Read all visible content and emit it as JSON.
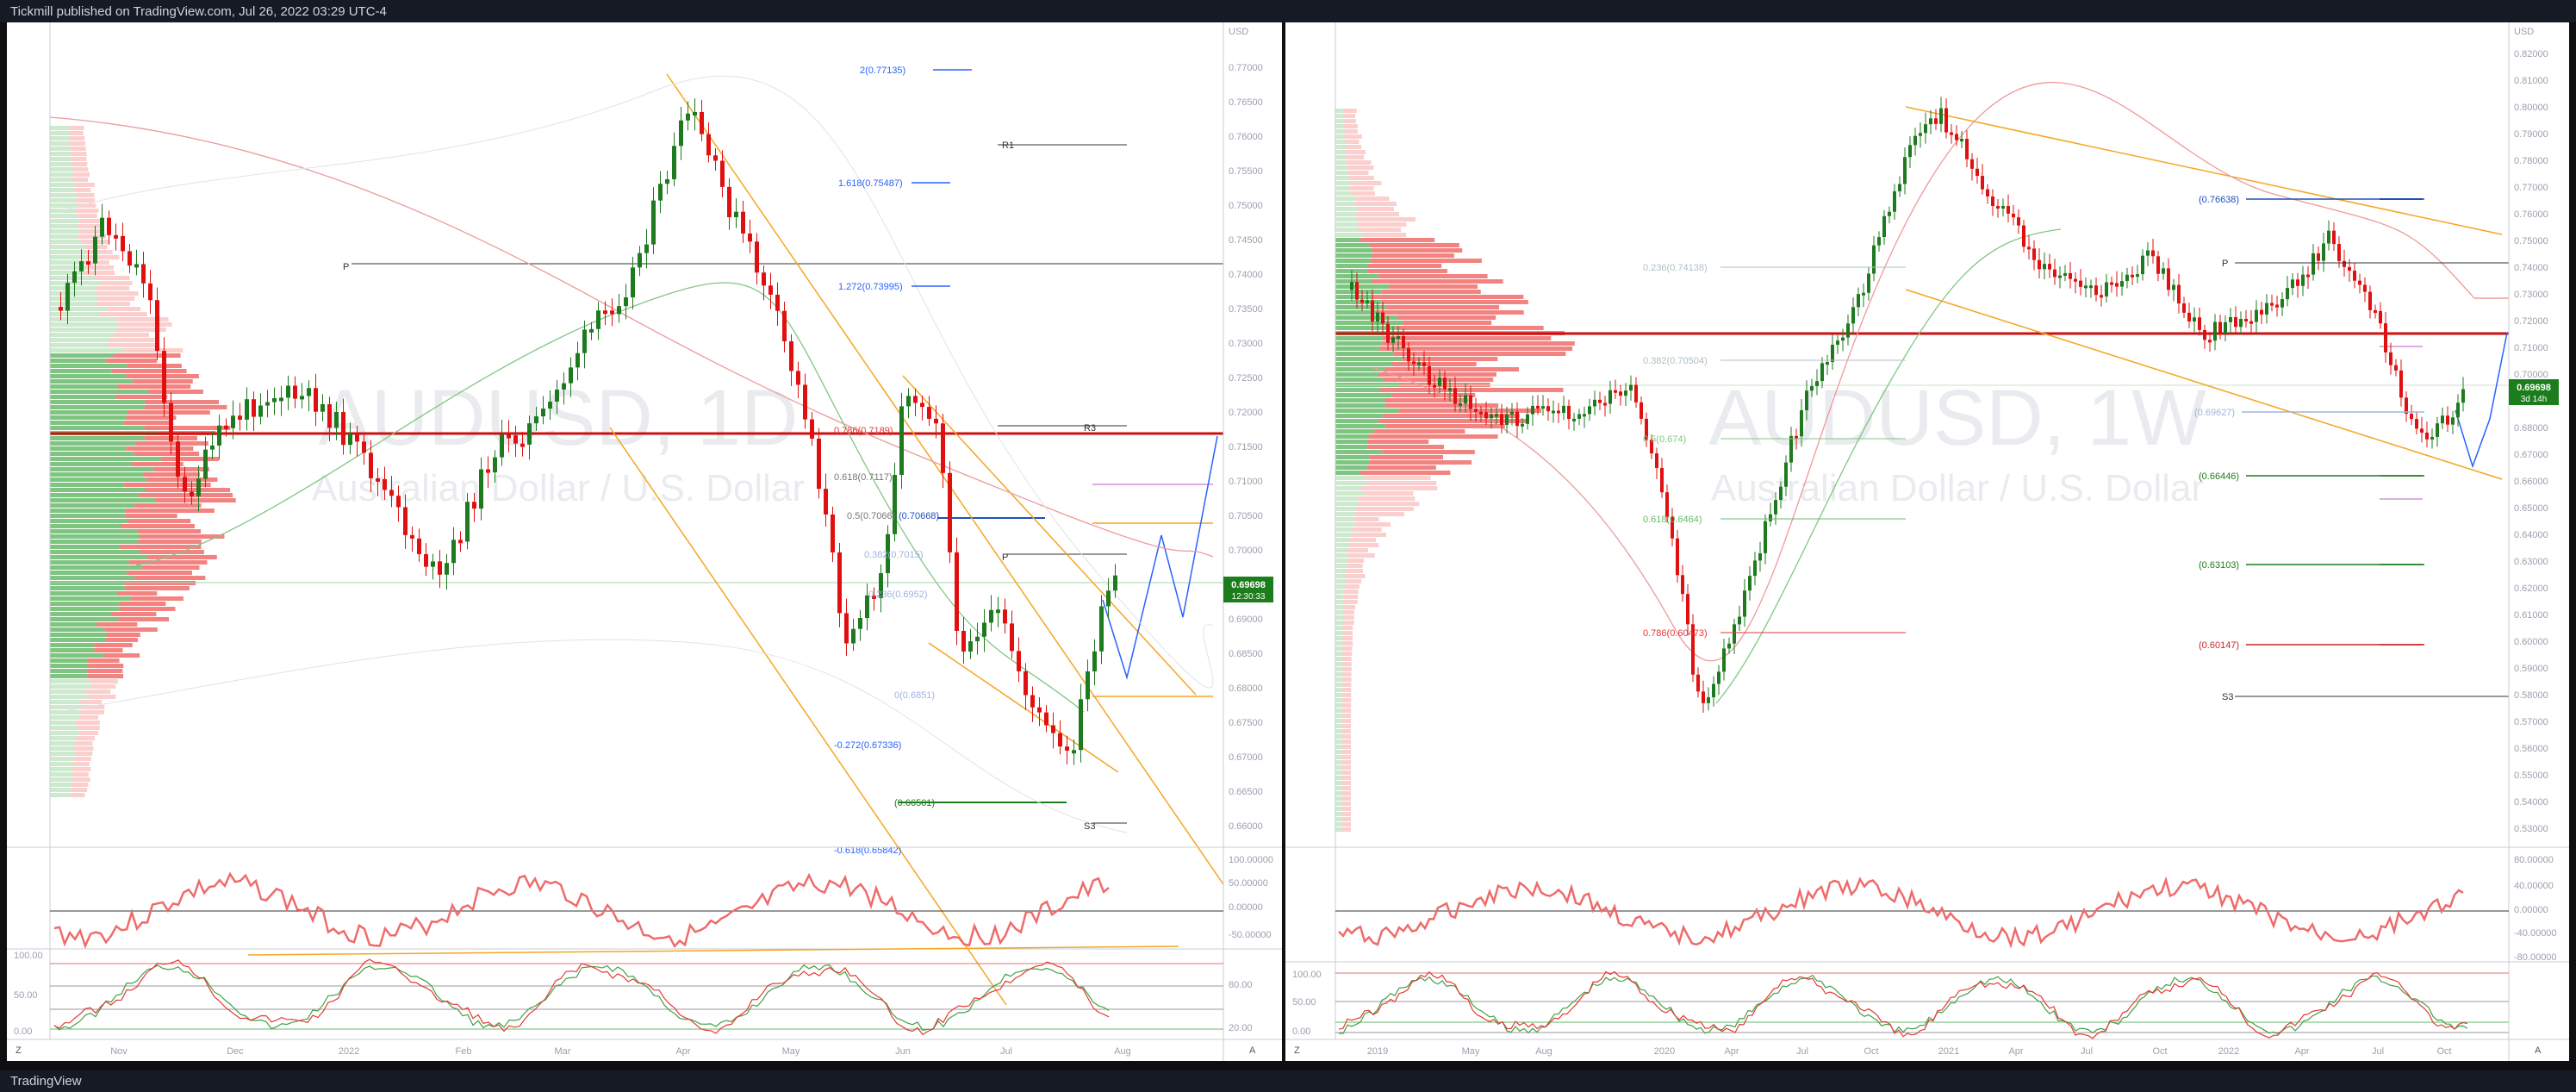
{
  "header": {
    "publisher": "Tickmill published on TradingView.com, Jul 26, 2022 03:29 UTC-4"
  },
  "footer": {
    "brand": "TradingView"
  },
  "colors": {
    "up": "#1e7a1e",
    "down": "#e01010",
    "channel": "#f5a623",
    "rsi_up": "#7dc67d",
    "rsi_down": "#ef6b6b",
    "fib_blue": "#2962ff",
    "pivot": "#333333",
    "price_badge": "#1b7d1b"
  },
  "left": {
    "symbol": "AUDUSD, 1D",
    "name": "Australian Dollar / U.S. Dollar",
    "currency": "USD",
    "price_badge": "0.69698",
    "countdown": "12:30:33",
    "y_ticks": [
      "0.77000",
      "0.76500",
      "0.76000",
      "0.75500",
      "0.75000",
      "0.74500",
      "0.74000",
      "0.73500",
      "0.73000",
      "0.72500",
      "0.72000",
      "0.71500",
      "0.71000",
      "0.70500",
      "0.70000",
      "0.69500",
      "0.69000",
      "0.68500",
      "0.68000",
      "0.67500",
      "0.67000",
      "0.66500",
      "0.66000"
    ],
    "x_ticks": [
      "Nov",
      "Dec",
      "2022",
      "Feb",
      "Mar",
      "Apr",
      "May",
      "Jun",
      "Jul",
      "Aug"
    ],
    "fib_labels": [
      "2(0.77135)",
      "1.618(0.75487)",
      "1.272(0.73995)",
      "0.786(0.7189)",
      "0.618(0.7117)",
      "0.5(0.7066)",
      "(0.70668)",
      "0.382(0.7015)",
      "0.236(0.6952)",
      "0(0.6851)",
      "-0.272(0.67336)",
      "(0.66501)",
      "-0.618(0.65842)"
    ],
    "pivot_labels": [
      "R1",
      "P",
      "R3",
      "P",
      "S3"
    ],
    "osc1_ticks": [
      "100.00000",
      "50.00000",
      "0.00000",
      "-50.00000"
    ],
    "osc2_ticks": [
      "100.00",
      "50.00",
      "0.00"
    ],
    "osc2_right": [
      "80.00",
      "20.00"
    ],
    "buttons": [
      "Z",
      "A"
    ]
  },
  "right": {
    "symbol": "AUDUSD, 1W",
    "name": "Australian Dollar / U.S. Dollar",
    "currency": "USD",
    "price_badge": "0.69698",
    "countdown": "3d 14h",
    "y_ticks": [
      "0.82000",
      "0.81000",
      "0.80000",
      "0.79000",
      "0.78000",
      "0.77000",
      "0.76000",
      "0.75000",
      "0.74000",
      "0.73000",
      "0.72000",
      "0.71000",
      "0.70000",
      "0.69000",
      "0.68000",
      "0.67000",
      "0.66000",
      "0.65000",
      "0.64000",
      "0.63000",
      "0.62000",
      "0.61000",
      "0.60000",
      "0.59000",
      "0.58000",
      "0.57000",
      "0.56000",
      "0.55000",
      "0.54000",
      "0.53000"
    ],
    "x_ticks": [
      "2019",
      "May",
      "Aug",
      "2020",
      "Apr",
      "Jul",
      "Oct",
      "2021",
      "Apr",
      "Jul",
      "Oct",
      "2022",
      "Apr",
      "Jul",
      "Oct"
    ],
    "fib_labels": [
      "0.236(0.74138)",
      "0.382(0.70504)",
      "0.5(0.674)",
      "0.618(0.6464)",
      "0.786(0.60473)"
    ],
    "level_labels": [
      "(0.76638)",
      "(0.69627)",
      "(0.66446)",
      "(0.63103)",
      "(0.60147)"
    ],
    "pivot_labels": [
      "P",
      "S3"
    ],
    "osc1_ticks": [
      "80.00000",
      "40.00000",
      "0.00000",
      "-40.00000",
      "-80.00000"
    ],
    "osc2_ticks": [
      "100.00",
      "50.00",
      "0.00"
    ],
    "buttons": [
      "Z",
      "A"
    ]
  }
}
